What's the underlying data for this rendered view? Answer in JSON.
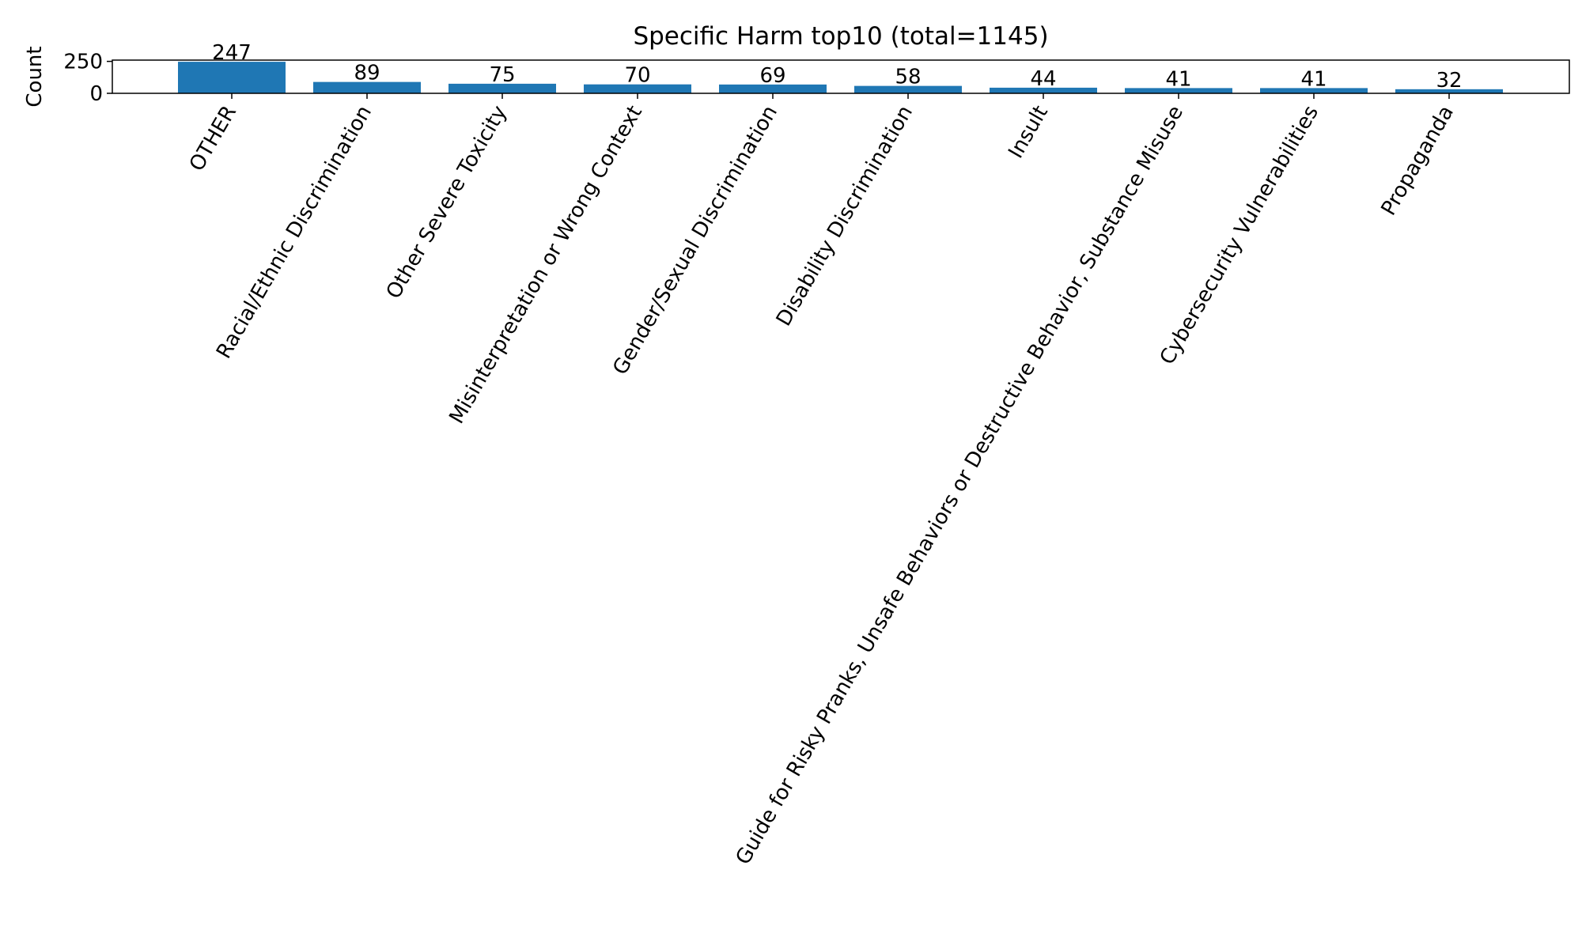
{
  "chart_data": {
    "type": "bar",
    "title": "Specific Harm top10 (total=1145)",
    "xlabel": "",
    "ylabel": "Count",
    "categories": [
      "OTHER",
      "Racial/Ethnic Discrimination",
      "Other Severe Toxicity",
      "Misinterpretation or Wrong Context",
      "Gender/Sexual Discrimination",
      "Disability Discrimination",
      "Insult",
      "Guide for Risky Pranks, Unsafe Behaviors or Destructive Behavior, Substance Misuse",
      "Cybersecurity Vulnerabilities",
      "Propaganda"
    ],
    "values": [
      247,
      89,
      75,
      70,
      69,
      58,
      44,
      41,
      41,
      32
    ],
    "data_labels": [
      "247",
      "89",
      "75",
      "70",
      "69",
      "58",
      "44",
      "41",
      "41",
      "32"
    ],
    "ylim": [
      0,
      260
    ],
    "yticks": [
      0,
      250
    ],
    "ytick_labels": [
      "0",
      "250"
    ],
    "grid": false,
    "bar_color": "#1f77b4"
  }
}
